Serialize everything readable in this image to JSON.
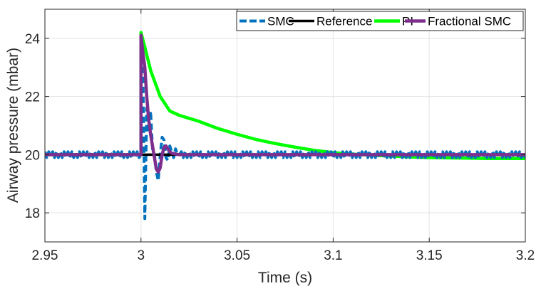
{
  "chart_data": {
    "type": "line",
    "xlabel": "Time (s)",
    "ylabel": "Airway pressure (mbar)",
    "xlim": [
      2.95,
      3.2
    ],
    "ylim": [
      17,
      25
    ],
    "xticks": [
      2.95,
      3.0,
      3.05,
      3.1,
      3.15,
      3.2
    ],
    "xtick_labels": [
      "2.95",
      "3",
      "3.05",
      "3.1",
      "3.15",
      "3.2"
    ],
    "yticks": [
      18,
      20,
      22,
      24
    ],
    "ytick_labels": [
      "18",
      "20",
      "22",
      "24"
    ],
    "grid": true,
    "legend_position": "top-right",
    "series": [
      {
        "name": "SMC",
        "color": "#0072BD",
        "style": "dashed",
        "chatter": {
          "amplitude": 0.1,
          "period": 0.002,
          "center": 20,
          "from": 2.95,
          "to": 3.2
        },
        "transient": {
          "x": [
            3.0,
            3.0,
            3.001,
            3.002,
            3.003,
            3.004,
            3.005,
            3.006,
            3.007,
            3.008,
            3.009,
            3.01,
            3.011,
            3.012,
            3.013,
            3.014,
            3.015,
            3.016,
            3.017,
            3.018,
            3.019,
            3.02
          ],
          "y": [
            20.0,
            24.0,
            22.9,
            17.8,
            21.6,
            20.8,
            21.5,
            20.2,
            20.0,
            19.4,
            19.1,
            20.0,
            20.6,
            20.5,
            19.9,
            19.8,
            20.3,
            20.1,
            19.9,
            20.2,
            20.0,
            20.0
          ]
        }
      },
      {
        "name": "Reference",
        "color": "#000000",
        "style": "solid",
        "x": [
          2.95,
          3.0,
          3.0,
          3.2
        ],
        "y": [
          20.0,
          20.0,
          20.0,
          20.0
        ]
      },
      {
        "name": "PI",
        "color": "#00FF00",
        "style": "solid",
        "x": [
          2.95,
          3.0,
          3.0,
          3.002,
          3.005,
          3.01,
          3.015,
          3.02,
          3.03,
          3.04,
          3.05,
          3.06,
          3.07,
          3.08,
          3.09,
          3.1,
          3.11,
          3.12,
          3.13,
          3.14,
          3.15,
          3.16,
          3.17,
          3.18,
          3.19,
          3.2
        ],
        "y": [
          20.0,
          20.0,
          24.2,
          23.7,
          22.9,
          22.0,
          21.5,
          21.35,
          21.15,
          20.9,
          20.7,
          20.52,
          20.38,
          20.26,
          20.15,
          20.07,
          20.02,
          19.98,
          19.95,
          19.92,
          19.9,
          19.89,
          19.88,
          19.87,
          19.87,
          19.87
        ]
      },
      {
        "name": "Fractional SMC",
        "color": "#7E2F8E",
        "style": "solid",
        "x": [
          2.95,
          3.0,
          3.0,
          3.001,
          3.002,
          3.003,
          3.004,
          3.005,
          3.006,
          3.007,
          3.008,
          3.009,
          3.01,
          3.011,
          3.012,
          3.013,
          3.014,
          3.015,
          3.016,
          3.018,
          3.02,
          3.025,
          3.03,
          3.05,
          3.1,
          3.15,
          3.2
        ],
        "y": [
          20.0,
          20.0,
          24.1,
          23.5,
          23.0,
          22.0,
          21.2,
          20.7,
          20.3,
          19.9,
          19.5,
          19.4,
          19.55,
          20.0,
          20.25,
          20.3,
          20.2,
          20.1,
          20.05,
          20.02,
          20.0,
          20.0,
          20.0,
          20.0,
          20.0,
          20.0,
          20.0
        ]
      }
    ]
  }
}
